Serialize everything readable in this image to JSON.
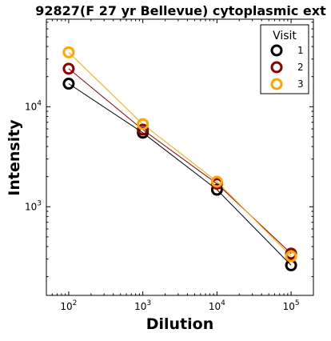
{
  "chart_data": {
    "type": "line",
    "title": "92827(F 27 yr Bellevue) cytoplasmic ext",
    "xlabel": "Dilution",
    "ylabel": "Intensity",
    "xscale": "log",
    "yscale": "log",
    "xlim": [
      50,
      200000
    ],
    "ylim": [
      130,
      75000
    ],
    "x": [
      100,
      1000,
      10000,
      100000
    ],
    "x_ticks": [
      {
        "base": "10",
        "exp": "2",
        "value": 100
      },
      {
        "base": "10",
        "exp": "3",
        "value": 1000
      },
      {
        "base": "10",
        "exp": "4",
        "value": 10000
      },
      {
        "base": "10",
        "exp": "5",
        "value": 100000
      }
    ],
    "y_ticks": [
      {
        "base": "10",
        "exp": "3",
        "value": 1000
      },
      {
        "base": "10",
        "exp": "4",
        "value": 10000
      }
    ],
    "grid": false,
    "legend": {
      "title": "Visit",
      "placement": "top-right"
    },
    "series": [
      {
        "name": "1",
        "color": "#000000",
        "values": [
          17000,
          5500,
          1480,
          260
        ]
      },
      {
        "name": "2",
        "color": "#8b0000",
        "values": [
          24000,
          5900,
          1700,
          340
        ]
      },
      {
        "name": "3",
        "color": "#ffa500",
        "values": [
          35000,
          6700,
          1780,
          320
        ]
      }
    ]
  }
}
